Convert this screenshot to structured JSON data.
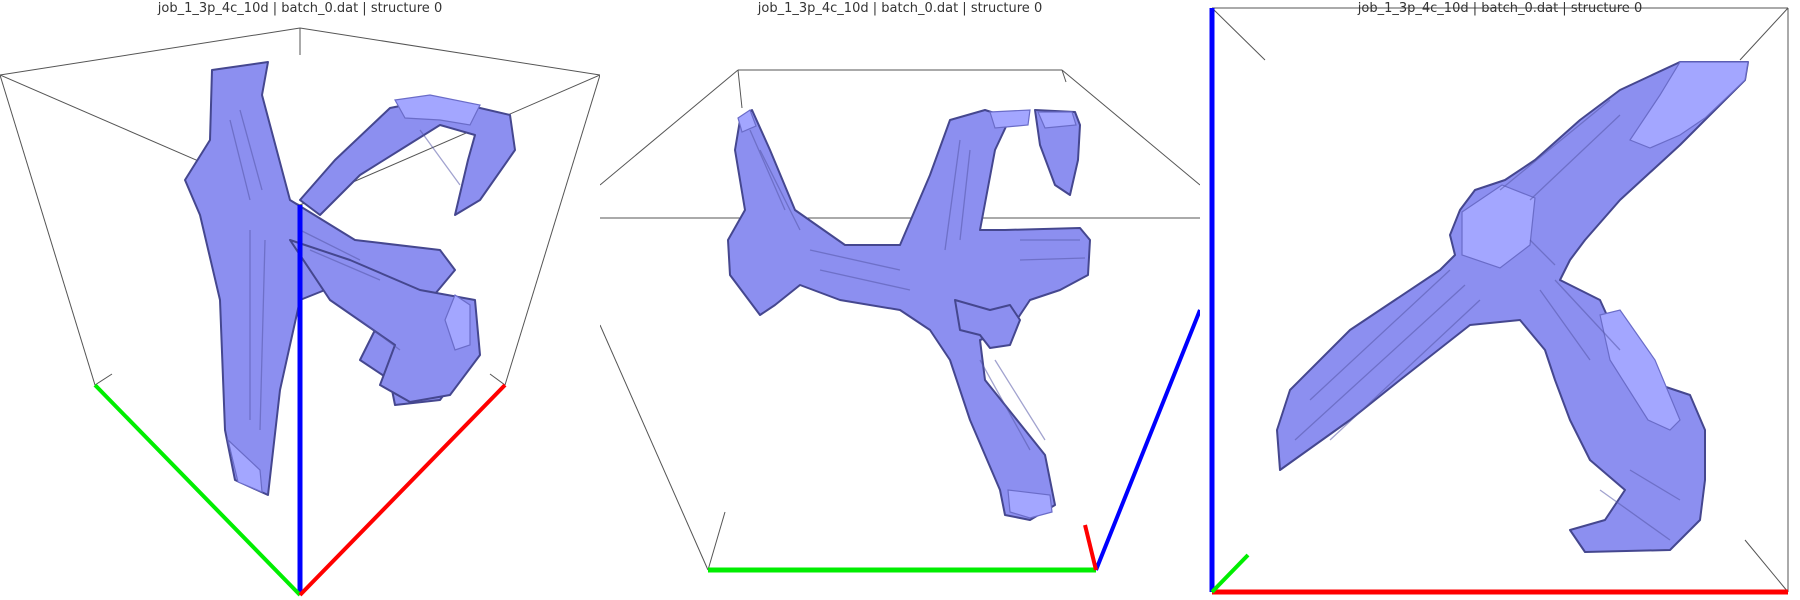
{
  "panels": [
    {
      "title": "job_1_3p_4c_10d | batch_0.dat | structure 0"
    },
    {
      "title": "job_1_3p_4c_10d | batch_0.dat | structure 0"
    },
    {
      "title": "job_1_3p_4c_10d | batch_0.dat | structure 0"
    }
  ],
  "colors": {
    "structure_fill": "#8c8ff0",
    "structure_edge": "#45478f",
    "axis_x": "#ff0000",
    "axis_y": "#00ee00",
    "axis_z": "#0000ff",
    "bounding_box": "#555555",
    "background": "#ffffff"
  }
}
